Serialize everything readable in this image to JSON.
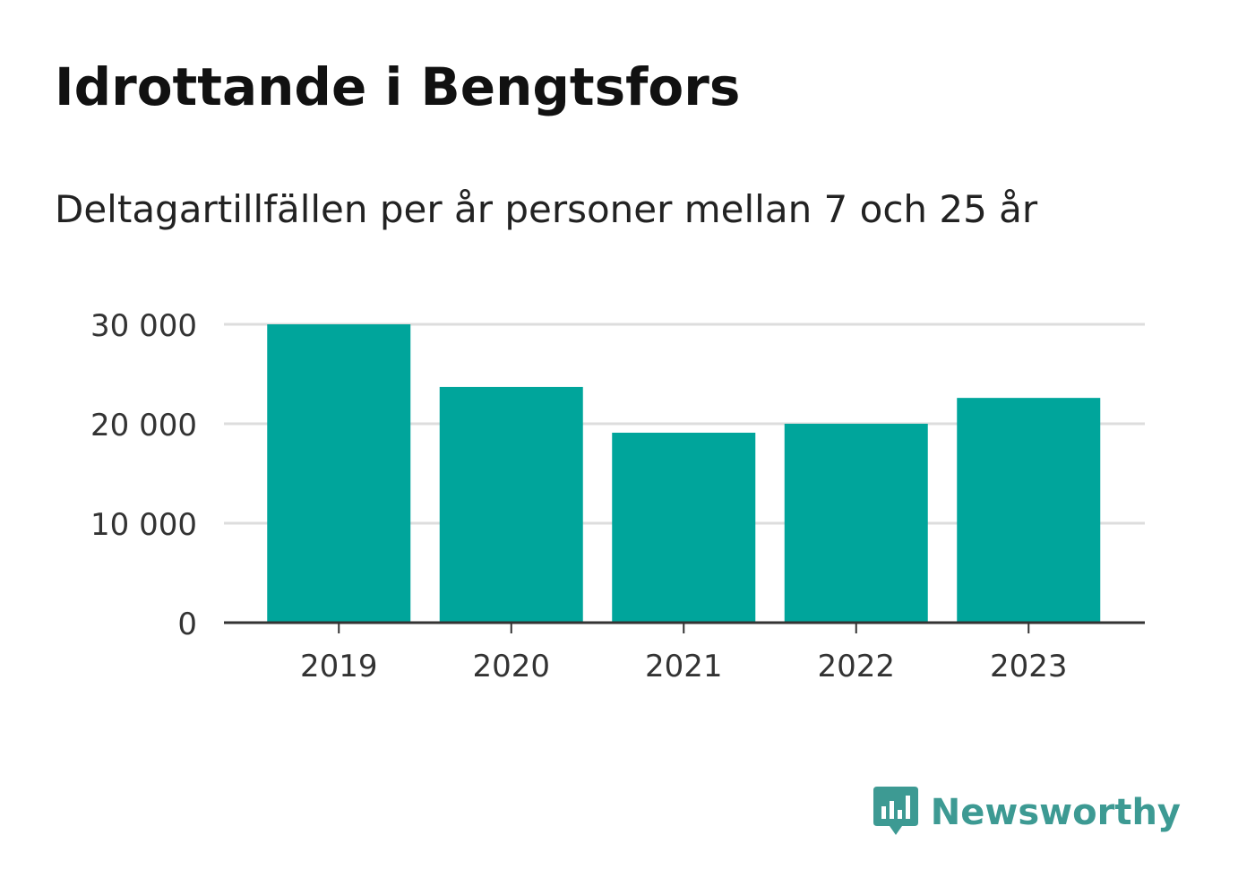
{
  "chart_data": {
    "type": "bar",
    "title": "Idrottande i Bengtsfors",
    "subtitle": "Deltagartillfällen per år personer mellan 7 och 25 år",
    "xlabel": "",
    "ylabel": "",
    "categories": [
      "2019",
      "2020",
      "2021",
      "2022",
      "2023"
    ],
    "values": [
      30000,
      23700,
      19100,
      20000,
      22600
    ],
    "ylim": [
      0,
      30000
    ],
    "yticks": [
      0,
      10000,
      20000,
      30000
    ],
    "ytick_labels": [
      "0",
      "10 000",
      "20 000",
      "30 000"
    ],
    "grid": true,
    "bar_color": "#00a59b",
    "grid_color": "#dddddd",
    "axis_color": "#333333"
  },
  "brand": {
    "name": "Newsworthy",
    "icon": "newsworthy-logo-icon",
    "color": "#3d9a93"
  }
}
